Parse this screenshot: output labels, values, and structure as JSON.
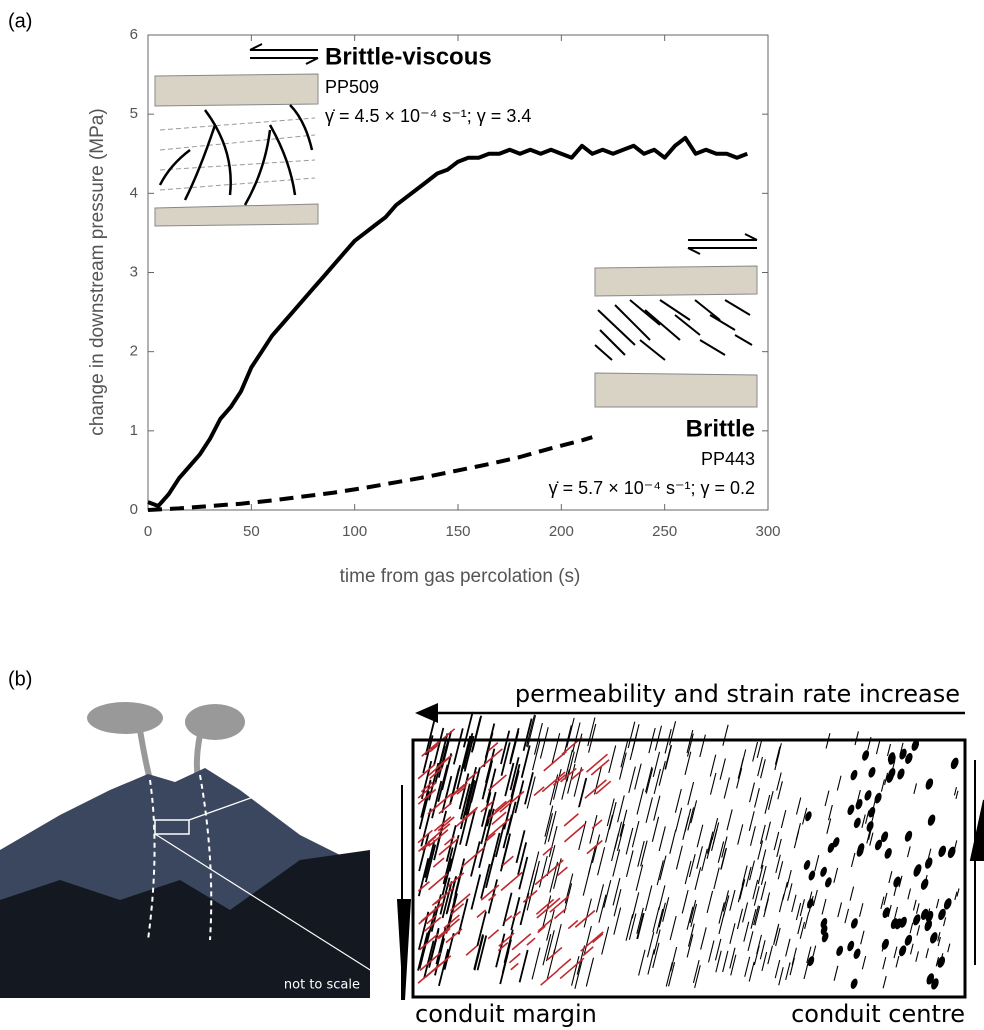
{
  "panel_a": {
    "label": "(a)"
  },
  "chart_data": {
    "type": "line",
    "xlabel": "time from gas percolation (s)",
    "ylabel": "change in downstream pressure (MPa)",
    "xlim": [
      0,
      300
    ],
    "ylim": [
      0,
      6
    ],
    "xticks": [
      0,
      50,
      100,
      150,
      200,
      250,
      300
    ],
    "yticks": [
      0,
      1,
      2,
      3,
      4,
      5,
      6
    ],
    "series": [
      {
        "name": "PP509",
        "label": "Brittle-viscous",
        "strain": "γ̇ = 4.5 × 10⁻⁴ s⁻¹; γ = 3.4",
        "color": "#000000",
        "dash": "solid",
        "x": [
          0,
          5,
          10,
          15,
          20,
          25,
          30,
          35,
          40,
          45,
          50,
          55,
          60,
          65,
          70,
          75,
          80,
          85,
          90,
          95,
          100,
          105,
          110,
          115,
          120,
          125,
          130,
          135,
          140,
          145,
          150,
          155,
          160,
          165,
          170,
          175,
          180,
          185,
          190,
          195,
          200,
          205,
          210,
          215,
          220,
          225,
          230,
          235,
          240,
          245,
          250,
          255,
          260,
          265,
          270,
          275,
          280,
          285,
          290
        ],
        "values": [
          0.1,
          0.05,
          0.2,
          0.4,
          0.55,
          0.7,
          0.9,
          1.15,
          1.3,
          1.5,
          1.8,
          2.0,
          2.2,
          2.35,
          2.5,
          2.65,
          2.8,
          2.95,
          3.1,
          3.25,
          3.4,
          3.5,
          3.6,
          3.7,
          3.85,
          3.95,
          4.05,
          4.15,
          4.25,
          4.3,
          4.4,
          4.45,
          4.45,
          4.5,
          4.5,
          4.55,
          4.5,
          4.55,
          4.5,
          4.55,
          4.5,
          4.45,
          4.6,
          4.5,
          4.55,
          4.5,
          4.55,
          4.6,
          4.5,
          4.55,
          4.45,
          4.6,
          4.7,
          4.5,
          4.55,
          4.5,
          4.5,
          4.45,
          4.5
        ]
      },
      {
        "name": "PP443",
        "label": "Brittle",
        "strain": "γ̇ = 5.7 × 10⁻⁴ s⁻¹; γ = 0.2",
        "color": "#000000",
        "dash": "dashed",
        "x": [
          0,
          15,
          30,
          45,
          60,
          75,
          90,
          105,
          120,
          135,
          150,
          165,
          180,
          195,
          210,
          215
        ],
        "values": [
          0,
          0.02,
          0.05,
          0.08,
          0.12,
          0.17,
          0.22,
          0.28,
          0.35,
          0.42,
          0.5,
          0.58,
          0.67,
          0.78,
          0.88,
          0.92
        ]
      }
    ]
  },
  "panel_b": {
    "label": "(b)",
    "arrow_text": "permeability and strain rate increase",
    "left_label": "conduit margin",
    "right_label": "conduit centre",
    "photo_note": "not to scale"
  }
}
